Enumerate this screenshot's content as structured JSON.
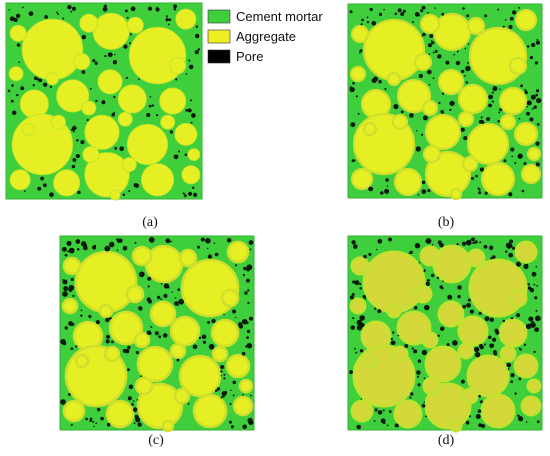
{
  "legend": {
    "items": [
      {
        "label": "Cement mortar",
        "color": "#3fcf3c"
      },
      {
        "label": "Aggregate",
        "color": "#eeee22"
      },
      {
        "label": "Pore",
        "color": "#000000"
      }
    ]
  },
  "panels": [
    {
      "caption": "(a)"
    },
    {
      "caption": "(b)"
    },
    {
      "caption": "(c)"
    },
    {
      "caption": "(d)"
    }
  ],
  "colors": {
    "mortar": "#3fcf3c",
    "mortar_frame": "#34c134",
    "aggregate": "#e6ef24",
    "aggregate_rim": "#cfe02c",
    "aggregate_d": "#d4d83a",
    "pore": "#0b1a0b"
  }
}
